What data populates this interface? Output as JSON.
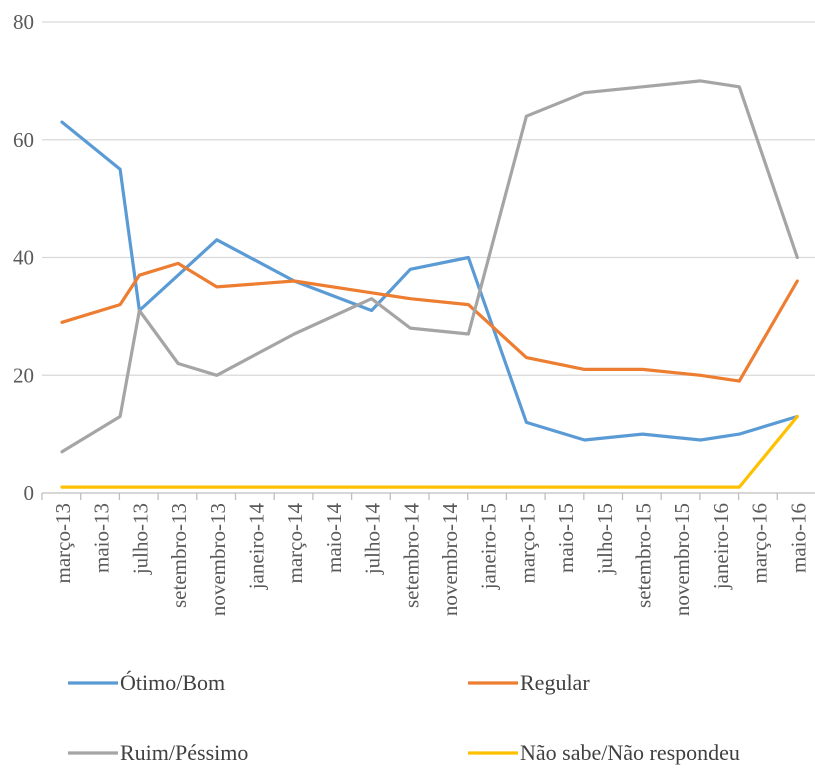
{
  "chart_data": {
    "type": "line",
    "title": "",
    "xlabel": "",
    "ylabel": "",
    "ylim": [
      0,
      80
    ],
    "yticks": [
      0,
      20,
      40,
      60,
      80
    ],
    "grid": "horizontal",
    "legend_position": "bottom",
    "x": [
      "março-13",
      "maio-13",
      "julho-13",
      "setembro-13",
      "novembro-13",
      "janeiro-14",
      "março-14",
      "maio-14",
      "julho-14",
      "setembro-14",
      "novembro-14",
      "janeiro-15",
      "março-15",
      "maio-15",
      "julho-15",
      "setembro-15",
      "novembro-15",
      "janeiro-16",
      "março-16",
      "maio-16"
    ],
    "series": [
      {
        "name": "Ótimo/Bom",
        "color": "#5B9BD5",
        "points": [
          [
            0,
            63
          ],
          [
            1.5,
            55
          ],
          [
            2,
            31
          ],
          [
            3,
            37
          ],
          [
            4,
            43
          ],
          [
            6,
            36
          ],
          [
            8,
            31
          ],
          [
            9,
            38
          ],
          [
            10.5,
            40
          ],
          [
            12,
            12
          ],
          [
            13.5,
            9
          ],
          [
            15,
            10
          ],
          [
            16.5,
            9
          ],
          [
            17.5,
            10
          ],
          [
            19,
            13
          ]
        ]
      },
      {
        "name": "Regular",
        "color": "#ED7D31",
        "points": [
          [
            0,
            29
          ],
          [
            1.5,
            32
          ],
          [
            2,
            37
          ],
          [
            3,
            39
          ],
          [
            4,
            35
          ],
          [
            6,
            36
          ],
          [
            8,
            34
          ],
          [
            9,
            33
          ],
          [
            10.5,
            32
          ],
          [
            12,
            23
          ],
          [
            13.5,
            21
          ],
          [
            15,
            21
          ],
          [
            16.5,
            20
          ],
          [
            17.5,
            19
          ],
          [
            19,
            36
          ]
        ]
      },
      {
        "name": "Ruim/Péssimo",
        "color": "#A5A5A5",
        "points": [
          [
            0,
            7
          ],
          [
            1.5,
            13
          ],
          [
            2,
            31
          ],
          [
            3,
            22
          ],
          [
            4,
            20
          ],
          [
            6,
            27
          ],
          [
            8,
            33
          ],
          [
            9,
            28
          ],
          [
            10.5,
            27
          ],
          [
            12,
            64
          ],
          [
            13.5,
            68
          ],
          [
            15,
            69
          ],
          [
            16.5,
            70
          ],
          [
            17.5,
            69
          ],
          [
            19,
            40
          ]
        ]
      },
      {
        "name": "Não sabe/Não respondeu",
        "color": "#FFC000",
        "points": [
          [
            0,
            1
          ],
          [
            1.5,
            1
          ],
          [
            2,
            1
          ],
          [
            3,
            1
          ],
          [
            4,
            1
          ],
          [
            6,
            1
          ],
          [
            8,
            1
          ],
          [
            9,
            1
          ],
          [
            10.5,
            1
          ],
          [
            12,
            1
          ],
          [
            13.5,
            1
          ],
          [
            15,
            1
          ],
          [
            16.5,
            1
          ],
          [
            17.5,
            1
          ],
          [
            19,
            13
          ]
        ]
      }
    ]
  }
}
